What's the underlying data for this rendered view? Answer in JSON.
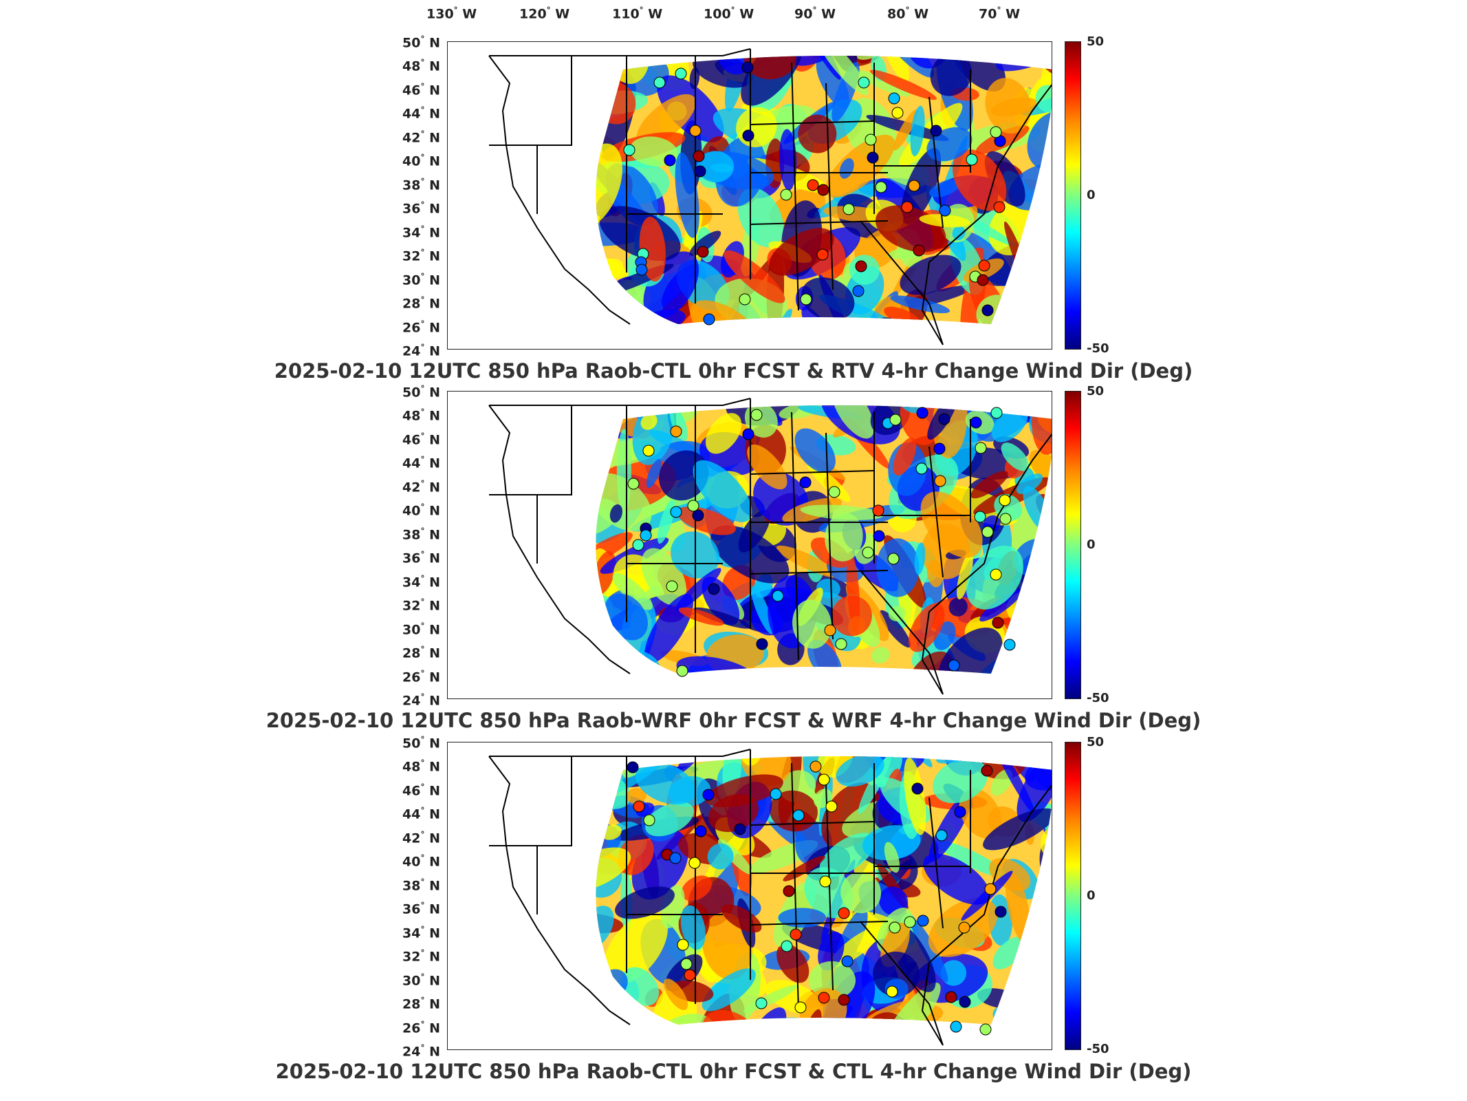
{
  "longitude_labels": [
    "130",
    "120",
    "110",
    "100",
    "90",
    "80",
    "70"
  ],
  "lon_suffix": "W",
  "latitude_labels": [
    "50",
    "48",
    "46",
    "44",
    "42",
    "40",
    "38",
    "36",
    "34",
    "32",
    "30",
    "28",
    "26",
    "24"
  ],
  "lat_suffix": "N",
  "colorbar": {
    "max": "50",
    "mid": "0",
    "min": "-50"
  },
  "panels": [
    {
      "title": "2025-02-10 12UTC 850 hPa Raob-CTL 0hr FCST & RTV 4-hr Change Wind Dir (Deg)"
    },
    {
      "title": "2025-02-10 12UTC 850 hPa Raob-WRF 0hr FCST & WRF 4-hr Change Wind Dir (Deg)"
    },
    {
      "title": "2025-02-10 12UTC 850 hPa Raob-CTL 0hr FCST & CTL 4-hr Change Wind Dir (Deg)"
    }
  ],
  "colors": {
    "max": "#800000",
    "zero": "#80ff80",
    "min": "#000080"
  }
}
